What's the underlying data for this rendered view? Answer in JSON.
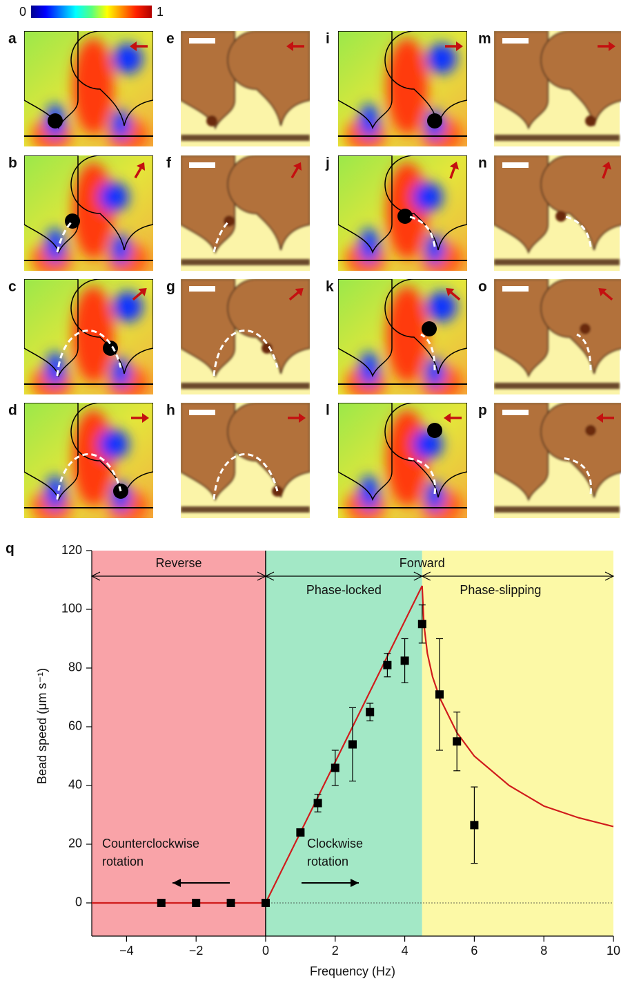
{
  "colorbar": {
    "min_label": "0",
    "max_label": "1"
  },
  "panels": [
    {
      "label": "a"
    },
    {
      "label": "b"
    },
    {
      "label": "c"
    },
    {
      "label": "d"
    },
    {
      "label": "e"
    },
    {
      "label": "f"
    },
    {
      "label": "g"
    },
    {
      "label": "h"
    },
    {
      "label": "i"
    },
    {
      "label": "j"
    },
    {
      "label": "k"
    },
    {
      "label": "l"
    },
    {
      "label": "m"
    },
    {
      "label": "n"
    },
    {
      "label": "o"
    },
    {
      "label": "p"
    }
  ],
  "chart_data": {
    "type": "scatter",
    "panel_label": "q",
    "xlabel": "Frequency (Hz)",
    "ylabel": "Bead speed (μm s⁻¹)",
    "xlim": [
      -5,
      10
    ],
    "ylim": [
      -11.3,
      120
    ],
    "xticks": [
      {
        "value": -4,
        "label": "−4"
      },
      {
        "value": -2,
        "label": "−2"
      },
      0,
      2,
      4,
      6,
      8,
      10
    ],
    "yticks": [
      0,
      20,
      40,
      60,
      80,
      100,
      120
    ],
    "regions": [
      {
        "label": "Reverse",
        "xmin": -5,
        "xmax": 0,
        "color": "#f9a3a8"
      },
      {
        "label": "Phase-locked",
        "xmin": 0,
        "xmax": 4.5,
        "color": "#a3e8c6"
      },
      {
        "label": "Phase-slipping",
        "xmin": 4.5,
        "xmax": 10,
        "color": "#fcf9a6"
      }
    ],
    "forward_label": "Forward",
    "annotations": [
      "Counterclockwise",
      "rotation",
      "Clockwise",
      "rotation"
    ],
    "x": [
      -3,
      -2,
      -1,
      0,
      1,
      1.5,
      2,
      2.5,
      3,
      3.5,
      4,
      4.5,
      5,
      5.5,
      6
    ],
    "values": [
      0,
      0,
      0,
      0,
      24,
      34,
      46,
      54,
      65,
      81,
      82.5,
      95,
      71,
      55,
      26.5
    ],
    "errors": [
      0,
      0,
      0,
      0,
      0,
      3,
      6,
      12.5,
      3,
      4,
      7.5,
      6.5,
      19,
      10,
      13
    ],
    "color": "#000000",
    "model": {
      "x": [
        -5,
        0,
        4.5,
        4.55,
        4.65,
        4.8,
        5,
        5.5,
        6,
        7,
        8,
        9,
        10
      ],
      "values": [
        0,
        0,
        108,
        95,
        85,
        77,
        70,
        58,
        50,
        40,
        33,
        29,
        26
      ],
      "color": "#d01c1c"
    }
  }
}
